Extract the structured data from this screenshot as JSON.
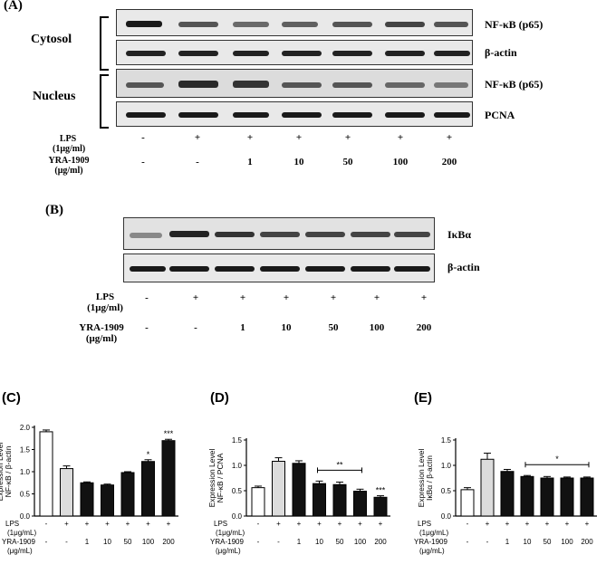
{
  "panel_A": {
    "label": "(A)",
    "group_cytosol": "Cytosol",
    "group_nucleus": "Nucleus",
    "blot_labels": [
      "NF-κB (p65)",
      "β-actin",
      "NF-κB (p65)",
      "PCNA"
    ],
    "lps_label_1": "LPS",
    "lps_label_2": "(1μg/ml)",
    "yra_label_1": "YRA-1909",
    "yra_label_2": "(μg/ml)",
    "lps_values": [
      "-",
      "+",
      "+",
      "+",
      "+",
      "+",
      "+"
    ],
    "yra_values": [
      "-",
      "-",
      "1",
      "10",
      "50",
      "100",
      "200"
    ]
  },
  "panel_B": {
    "label": "(B)",
    "blot_labels": [
      "IκBα",
      "β-actin"
    ],
    "lps_label_1": "LPS",
    "lps_label_2": "(1μg/ml)",
    "yra_label_1": "YRA-1909",
    "yra_label_2": "(μg/ml)",
    "lps_values": [
      "-",
      "+",
      "+",
      "+",
      "+",
      "+",
      "+"
    ],
    "yra_values": [
      "-",
      "-",
      "1",
      "10",
      "50",
      "100",
      "200"
    ]
  },
  "chart_data": [
    {
      "type": "bar",
      "panel": "(C)",
      "ylabel_1": "Expression Level",
      "ylabel_2": "NF-κB / β-actin",
      "ylim": [
        0,
        2.0
      ],
      "yticks": [
        "0.0",
        "0.5",
        "1.0",
        "1.5",
        "2.0"
      ],
      "values": [
        1.9,
        1.07,
        0.75,
        0.7,
        0.98,
        1.23,
        1.7
      ],
      "errors": [
        0.04,
        0.06,
        0.02,
        0.02,
        0.02,
        0.04,
        0.03
      ],
      "bar_colors": [
        "#ffffff",
        "#dcdcdc",
        "#111111",
        "#111111",
        "#111111",
        "#111111",
        "#111111"
      ],
      "significance": [
        "",
        "",
        "",
        "",
        "",
        "*",
        "***"
      ],
      "bracket_text": "",
      "row1_label": "LPS",
      "row1_sub": "(1μg/mL)",
      "row1": [
        "-",
        "+",
        "+",
        "+",
        "+",
        "+",
        "+"
      ],
      "row2_label": "YRA-1909",
      "row2_sub": "(μg/mL)",
      "row2": [
        "-",
        "-",
        "1",
        "10",
        "50",
        "100",
        "200"
      ]
    },
    {
      "type": "bar",
      "panel": "(D)",
      "ylabel_1": "Expression Level",
      "ylabel_2": "NF-κB / PCNA",
      "ylim": [
        0,
        1.5
      ],
      "yticks": [
        "0.0",
        "0.5",
        "1.0",
        "1.5"
      ],
      "values": [
        0.56,
        1.08,
        1.04,
        0.64,
        0.62,
        0.49,
        0.37
      ],
      "errors": [
        0.03,
        0.07,
        0.05,
        0.05,
        0.05,
        0.04,
        0.03
      ],
      "bar_colors": [
        "#ffffff",
        "#dcdcdc",
        "#111111",
        "#111111",
        "#111111",
        "#111111",
        "#111111"
      ],
      "significance": [
        "",
        "",
        "",
        "",
        "",
        "",
        "***"
      ],
      "bracket_text": "**",
      "bracket_span": [
        3,
        5
      ],
      "row1_label": "LPS",
      "row1_sub": "(1μg/mL)",
      "row1": [
        "-",
        "+",
        "+",
        "+",
        "+",
        "+",
        "+"
      ],
      "row2_label": "YRA-1909",
      "row2_sub": "(μg/mL)",
      "row2": [
        "-",
        "-",
        "1",
        "10",
        "50",
        "100",
        "200"
      ]
    },
    {
      "type": "bar",
      "panel": "(E)",
      "ylabel_1": "Expression Level",
      "ylabel_2": "IκBα / β-actin",
      "ylim": [
        0,
        1.5
      ],
      "yticks": [
        "0.0",
        "0.5",
        "1.0",
        "1.5"
      ],
      "values": [
        0.52,
        1.12,
        0.88,
        0.78,
        0.75,
        0.75,
        0.75
      ],
      "errors": [
        0.04,
        0.12,
        0.04,
        0.02,
        0.03,
        0.02,
        0.02
      ],
      "bar_colors": [
        "#ffffff",
        "#dcdcdc",
        "#111111",
        "#111111",
        "#111111",
        "#111111",
        "#111111"
      ],
      "significance": [
        "",
        "",
        "",
        "",
        "",
        "",
        ""
      ],
      "bracket_text": "*",
      "bracket_span": [
        3,
        6
      ],
      "row1_label": "LPS",
      "row1_sub": "(1μg/mL)",
      "row1": [
        "-",
        "+",
        "+",
        "+",
        "+",
        "+",
        "+"
      ],
      "row2_label": "YRA-1909",
      "row2_sub": "(μg/mL)",
      "row2": [
        "-",
        "-",
        "1",
        "10",
        "50",
        "100",
        "200"
      ]
    }
  ]
}
